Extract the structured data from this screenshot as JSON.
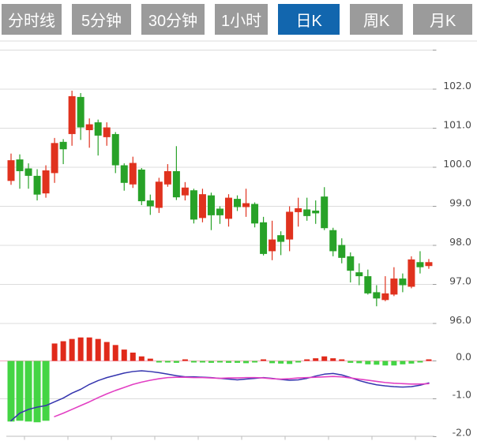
{
  "tabs": [
    {
      "label": "分时线",
      "active": false
    },
    {
      "label": "5分钟",
      "active": false
    },
    {
      "label": "30分钟",
      "active": false
    },
    {
      "label": "1小时",
      "active": false
    },
    {
      "label": "日K",
      "active": true
    },
    {
      "label": "周K",
      "active": false
    },
    {
      "label": "月K",
      "active": false
    }
  ],
  "chart_data": {
    "type": "candlestick",
    "title": "Daily K-line with MACD",
    "legend_position": "none",
    "grid": true,
    "panels": [
      {
        "name": "price",
        "ylim": [
          95.9,
          103.2
        ],
        "gridline_values": [
          103,
          102,
          101,
          100,
          99,
          98,
          97,
          96
        ],
        "tick_labels": [
          "102.0",
          "101.0",
          "100.0",
          "99.0",
          "98.0",
          "97.0",
          "96.0"
        ],
        "tick_values": [
          102,
          101,
          100,
          99,
          98,
          97,
          96
        ]
      },
      {
        "name": "macd",
        "ylim": [
          -2.1,
          0.35
        ],
        "gridline_values": [
          0,
          -1,
          -2
        ],
        "tick_labels": [
          "0.0",
          "-1.0",
          "-2.0"
        ],
        "tick_values": [
          0,
          -1,
          -2
        ]
      }
    ],
    "candles": [
      {
        "o": 99.65,
        "c": 100.18,
        "h": 100.35,
        "l": 99.55
      },
      {
        "o": 100.2,
        "c": 99.9,
        "h": 100.33,
        "l": 99.45
      },
      {
        "o": 99.97,
        "c": 99.78,
        "h": 100.1,
        "l": 99.45
      },
      {
        "o": 99.78,
        "c": 99.3,
        "h": 99.95,
        "l": 99.15
      },
      {
        "o": 99.33,
        "c": 99.92,
        "h": 100.05,
        "l": 99.22
      },
      {
        "o": 99.85,
        "c": 100.62,
        "h": 100.75,
        "l": 99.6
      },
      {
        "o": 100.65,
        "c": 100.46,
        "h": 100.72,
        "l": 100.08
      },
      {
        "o": 100.85,
        "c": 101.82,
        "h": 101.96,
        "l": 100.55
      },
      {
        "o": 101.8,
        "c": 101.02,
        "h": 101.9,
        "l": 100.7
      },
      {
        "o": 100.95,
        "c": 101.1,
        "h": 101.25,
        "l": 100.5
      },
      {
        "o": 101.15,
        "c": 100.81,
        "h": 101.22,
        "l": 100.3
      },
      {
        "o": 100.77,
        "c": 101.02,
        "h": 101.15,
        "l": 100.55
      },
      {
        "o": 100.85,
        "c": 100.05,
        "h": 100.9,
        "l": 99.85
      },
      {
        "o": 100.05,
        "c": 99.6,
        "h": 100.1,
        "l": 99.4
      },
      {
        "o": 99.56,
        "c": 100.11,
        "h": 100.27,
        "l": 99.47
      },
      {
        "o": 99.94,
        "c": 99.13,
        "h": 99.98,
        "l": 99.03
      },
      {
        "o": 99.15,
        "c": 99.0,
        "h": 99.3,
        "l": 98.78
      },
      {
        "o": 98.96,
        "c": 99.63,
        "h": 99.73,
        "l": 98.83
      },
      {
        "o": 99.56,
        "c": 99.9,
        "h": 100.08,
        "l": 99.5
      },
      {
        "o": 99.9,
        "c": 99.23,
        "h": 100.54,
        "l": 99.16
      },
      {
        "o": 99.28,
        "c": 99.48,
        "h": 99.62,
        "l": 99.15
      },
      {
        "o": 99.41,
        "c": 98.66,
        "h": 99.45,
        "l": 98.56
      },
      {
        "o": 98.7,
        "c": 99.31,
        "h": 99.45,
        "l": 98.59
      },
      {
        "o": 99.28,
        "c": 98.77,
        "h": 99.35,
        "l": 98.39
      },
      {
        "o": 98.94,
        "c": 98.77,
        "h": 99.0,
        "l": 98.55
      },
      {
        "o": 98.68,
        "c": 99.22,
        "h": 99.31,
        "l": 98.48
      },
      {
        "o": 99.19,
        "c": 98.98,
        "h": 99.28,
        "l": 98.88
      },
      {
        "o": 98.98,
        "c": 99.08,
        "h": 99.45,
        "l": 98.73
      },
      {
        "o": 99.06,
        "c": 98.56,
        "h": 99.1,
        "l": 98.46
      },
      {
        "o": 98.59,
        "c": 97.78,
        "h": 98.73,
        "l": 97.74
      },
      {
        "o": 97.85,
        "c": 98.15,
        "h": 98.63,
        "l": 97.62
      },
      {
        "o": 98.26,
        "c": 98.09,
        "h": 98.36,
        "l": 97.75
      },
      {
        "o": 98.15,
        "c": 98.86,
        "h": 99.0,
        "l": 97.85
      },
      {
        "o": 98.85,
        "c": 98.95,
        "h": 99.22,
        "l": 98.48
      },
      {
        "o": 98.92,
        "c": 98.75,
        "h": 99.22,
        "l": 98.63
      },
      {
        "o": 98.89,
        "c": 98.82,
        "h": 99.15,
        "l": 98.55
      },
      {
        "o": 99.25,
        "c": 98.44,
        "h": 99.49,
        "l": 98.39
      },
      {
        "o": 98.39,
        "c": 97.85,
        "h": 98.45,
        "l": 97.72
      },
      {
        "o": 98.01,
        "c": 97.68,
        "h": 98.18,
        "l": 97.54
      },
      {
        "o": 97.72,
        "c": 97.35,
        "h": 97.82,
        "l": 97.05
      },
      {
        "o": 97.31,
        "c": 97.21,
        "h": 97.54,
        "l": 96.98
      },
      {
        "o": 97.21,
        "c": 96.77,
        "h": 97.38,
        "l": 96.74
      },
      {
        "o": 96.8,
        "c": 96.64,
        "h": 96.98,
        "l": 96.44
      },
      {
        "o": 96.6,
        "c": 96.77,
        "h": 97.21,
        "l": 96.57
      },
      {
        "o": 96.74,
        "c": 97.15,
        "h": 97.44,
        "l": 96.7
      },
      {
        "o": 97.15,
        "c": 96.98,
        "h": 97.28,
        "l": 96.8
      },
      {
        "o": 96.94,
        "c": 97.64,
        "h": 97.72,
        "l": 96.9
      },
      {
        "o": 97.57,
        "c": 97.44,
        "h": 97.85,
        "l": 97.28
      },
      {
        "o": 97.47,
        "c": 97.57,
        "h": 97.65,
        "l": 97.4
      }
    ],
    "macd": {
      "histogram": [
        -1.6,
        -1.58,
        -1.6,
        -1.62,
        -1.58,
        0.46,
        0.52,
        0.58,
        0.62,
        0.62,
        0.58,
        0.5,
        0.42,
        0.3,
        0.22,
        0.12,
        0.06,
        -0.04,
        -0.04,
        -0.05,
        0.03,
        -0.04,
        -0.03,
        -0.05,
        -0.04,
        -0.05,
        -0.05,
        -0.06,
        -0.02,
        0.02,
        -0.06,
        -0.07,
        -0.08,
        -0.03,
        0.04,
        0.07,
        0.12,
        0.07,
        0.02,
        -0.05,
        -0.06,
        -0.09,
        -0.1,
        -0.12,
        -0.12,
        -0.09,
        -0.07,
        -0.03,
        0.04
      ],
      "dif": [
        -1.58,
        -1.38,
        -1.28,
        -1.22,
        -1.18,
        -1.08,
        -0.98,
        -0.85,
        -0.75,
        -0.62,
        -0.52,
        -0.44,
        -0.38,
        -0.32,
        -0.28,
        -0.26,
        -0.28,
        -0.31,
        -0.35,
        -0.39,
        -0.42,
        -0.42,
        -0.43,
        -0.44,
        -0.46,
        -0.48,
        -0.5,
        -0.48,
        -0.46,
        -0.44,
        -0.46,
        -0.49,
        -0.51,
        -0.5,
        -0.46,
        -0.4,
        -0.35,
        -0.33,
        -0.37,
        -0.44,
        -0.52,
        -0.58,
        -0.63,
        -0.66,
        -0.68,
        -0.69,
        -0.68,
        -0.64,
        -0.58
      ],
      "dea": [
        null,
        null,
        null,
        null,
        null,
        -1.47,
        -1.38,
        -1.28,
        -1.18,
        -1.08,
        -0.97,
        -0.87,
        -0.78,
        -0.7,
        -0.62,
        -0.56,
        -0.51,
        -0.47,
        -0.44,
        -0.43,
        -0.43,
        -0.44,
        -0.44,
        -0.45,
        -0.46,
        -0.45,
        -0.45,
        -0.44,
        -0.44,
        -0.45,
        -0.47,
        -0.48,
        -0.47,
        -0.45,
        -0.44,
        -0.43,
        -0.42,
        -0.41,
        -0.42,
        -0.45,
        -0.48,
        -0.51,
        -0.54,
        -0.57,
        -0.59,
        -0.6,
        -0.61,
        -0.61,
        -0.6
      ]
    },
    "colors": {
      "up": "#e0321e",
      "down": "#28a228",
      "hist_up": "#e02a1a",
      "hist_down": "#44d544",
      "dif_line": "#3434ae",
      "dea_line": "#e23fc3",
      "zero_line": "#f5a6bd",
      "grid": "#dcdcdc",
      "axis": "#bdbdbd",
      "label": "#4a4a4a",
      "tab_bg": "#9b9b9b",
      "tab_active": "#1266ae"
    }
  }
}
